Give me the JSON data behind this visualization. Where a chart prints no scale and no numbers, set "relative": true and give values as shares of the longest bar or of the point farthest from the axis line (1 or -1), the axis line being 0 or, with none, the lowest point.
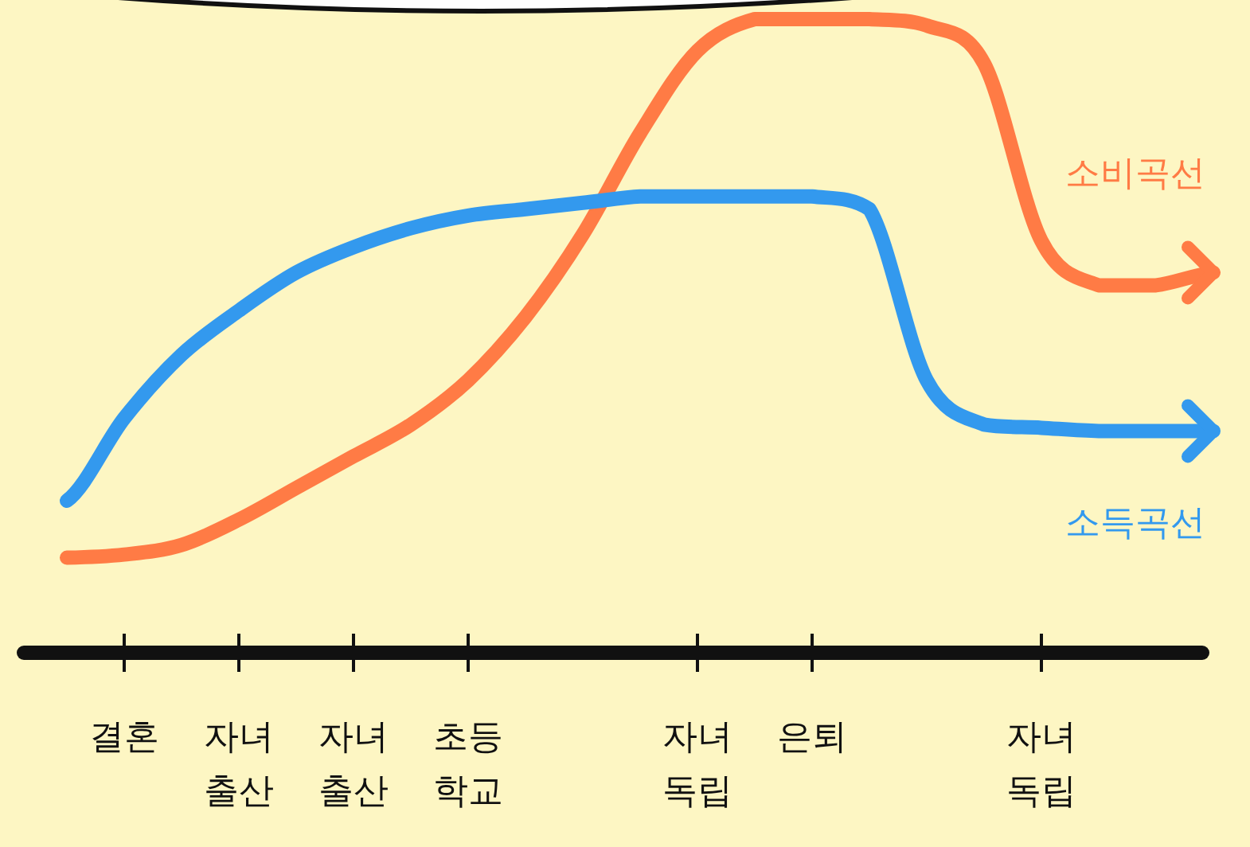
{
  "chart_data": {
    "type": "line",
    "relative": true,
    "tick_labels": "x",
    "categories": [
      null,
      "결혼",
      null,
      "자녀 출산",
      null,
      "자녀 출산",
      null,
      "초등 학교",
      null,
      null,
      null,
      "자녀 독립",
      null,
      "은퇴",
      null,
      null,
      null,
      "자녀 독립",
      null,
      null,
      null
    ],
    "series": [
      {
        "name": "소비곡선",
        "color": "#ff7b45",
        "values": [
          0.15,
          0.155,
          0.17,
          0.21,
          0.26,
          0.31,
          0.36,
          0.43,
          0.53,
          0.66,
          0.82,
          0.95,
          1,
          1,
          1,
          0.99,
          0.93,
          0.65,
          0.58,
          0.58,
          0.6
        ]
      },
      {
        "name": "소득곡선",
        "color": "#3399ee",
        "values": [
          0.24,
          0.37,
          0.47,
          0.54,
          0.6,
          0.64,
          0.67,
          0.69,
          0.7,
          0.71,
          0.72,
          0.72,
          0.72,
          0.72,
          0.7,
          0.43,
          0.36,
          0.355,
          0.35,
          0.35,
          0.35
        ]
      }
    ]
  }
}
